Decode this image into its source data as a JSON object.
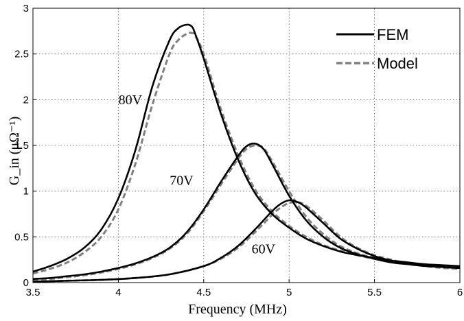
{
  "chart_data": {
    "type": "line",
    "xlabel": "Frequency (MHz)",
    "ylabel": "G_in (μΩ⁻¹)",
    "xlim": [
      3.5,
      6
    ],
    "ylim": [
      0,
      3
    ],
    "xticks": [
      "3.5",
      "4",
      "4.5",
      "5",
      "5.5",
      "6"
    ],
    "yticks": [
      "0",
      "0.5",
      "1",
      "1.5",
      "2",
      "2.5",
      "3"
    ],
    "grid": true,
    "legend_position": "top-right",
    "legend": [
      {
        "name": "FEM",
        "style": "solid",
        "color": "#000000"
      },
      {
        "name": "Model",
        "style": "dashed",
        "color": "#808080"
      }
    ],
    "series": [
      {
        "name": "FEM",
        "curve": "80V",
        "x": [
          3.5,
          3.6,
          3.7,
          3.8,
          3.9,
          4.0,
          4.1,
          4.2,
          4.3,
          4.35,
          4.4,
          4.43,
          4.45,
          4.5,
          4.6,
          4.7,
          4.8,
          4.9,
          5.0,
          5.1,
          5.2,
          5.3,
          5.4,
          5.5,
          5.6,
          5.7,
          5.8,
          5.9,
          6.0
        ],
        "y": [
          0.12,
          0.18,
          0.26,
          0.38,
          0.58,
          0.92,
          1.45,
          2.15,
          2.65,
          2.78,
          2.82,
          2.8,
          2.72,
          2.45,
          1.85,
          1.35,
          0.98,
          0.75,
          0.6,
          0.48,
          0.4,
          0.34,
          0.3,
          0.27,
          0.24,
          0.22,
          0.2,
          0.19,
          0.18
        ]
      },
      {
        "name": "Model",
        "curve": "80V",
        "x": [
          3.5,
          3.6,
          3.7,
          3.8,
          3.9,
          4.0,
          4.1,
          4.2,
          4.3,
          4.35,
          4.4,
          4.43,
          4.45,
          4.5,
          4.6,
          4.7,
          4.8,
          4.9,
          5.0,
          5.1,
          5.2,
          5.3,
          5.4,
          5.5,
          5.6,
          5.7,
          5.8,
          5.9,
          6.0
        ],
        "y": [
          0.1,
          0.15,
          0.22,
          0.33,
          0.5,
          0.8,
          1.3,
          1.95,
          2.5,
          2.65,
          2.72,
          2.73,
          2.7,
          2.5,
          1.9,
          1.4,
          1.02,
          0.78,
          0.62,
          0.5,
          0.41,
          0.35,
          0.3,
          0.26,
          0.23,
          0.21,
          0.19,
          0.17,
          0.16
        ]
      },
      {
        "name": "FEM",
        "curve": "70V",
        "x": [
          3.5,
          3.6,
          3.7,
          3.8,
          3.9,
          4.0,
          4.1,
          4.2,
          4.3,
          4.4,
          4.5,
          4.6,
          4.7,
          4.75,
          4.8,
          4.85,
          4.9,
          5.0,
          5.1,
          5.2,
          5.3,
          5.4,
          5.5,
          5.6,
          5.7,
          5.8,
          5.9,
          6.0
        ],
        "y": [
          0.04,
          0.05,
          0.07,
          0.09,
          0.12,
          0.16,
          0.21,
          0.28,
          0.38,
          0.55,
          0.8,
          1.1,
          1.38,
          1.49,
          1.52,
          1.46,
          1.3,
          0.95,
          0.68,
          0.5,
          0.38,
          0.31,
          0.26,
          0.22,
          0.2,
          0.18,
          0.17,
          0.16
        ]
      },
      {
        "name": "Model",
        "curve": "70V",
        "x": [
          3.5,
          3.6,
          3.7,
          3.8,
          3.9,
          4.0,
          4.1,
          4.2,
          4.3,
          4.4,
          4.5,
          4.6,
          4.7,
          4.75,
          4.8,
          4.85,
          4.9,
          5.0,
          5.1,
          5.2,
          5.3,
          5.4,
          5.5,
          5.6,
          5.7,
          5.8,
          5.9,
          6.0
        ],
        "y": [
          0.03,
          0.04,
          0.06,
          0.08,
          0.11,
          0.15,
          0.2,
          0.27,
          0.37,
          0.53,
          0.78,
          1.07,
          1.35,
          1.46,
          1.5,
          1.47,
          1.33,
          1.0,
          0.72,
          0.53,
          0.4,
          0.32,
          0.27,
          0.23,
          0.2,
          0.18,
          0.16,
          0.15
        ]
      },
      {
        "name": "FEM",
        "curve": "60V",
        "x": [
          3.5,
          3.7,
          3.9,
          4.1,
          4.3,
          4.5,
          4.6,
          4.7,
          4.8,
          4.9,
          4.95,
          5.0,
          5.05,
          5.1,
          5.2,
          5.3,
          5.4,
          5.5,
          5.6,
          5.7,
          5.8,
          5.9,
          6.0
        ],
        "y": [
          0.01,
          0.02,
          0.03,
          0.05,
          0.09,
          0.18,
          0.27,
          0.4,
          0.58,
          0.78,
          0.86,
          0.9,
          0.88,
          0.82,
          0.65,
          0.48,
          0.37,
          0.29,
          0.24,
          0.21,
          0.19,
          0.17,
          0.16
        ]
      },
      {
        "name": "Model",
        "curve": "60V",
        "x": [
          3.5,
          3.7,
          3.9,
          4.1,
          4.3,
          4.5,
          4.6,
          4.7,
          4.8,
          4.9,
          4.95,
          5.0,
          5.05,
          5.1,
          5.2,
          5.3,
          5.4,
          5.5,
          5.6,
          5.7,
          5.8,
          5.9,
          6.0
        ],
        "y": [
          0.01,
          0.02,
          0.03,
          0.05,
          0.09,
          0.18,
          0.26,
          0.38,
          0.55,
          0.74,
          0.82,
          0.87,
          0.88,
          0.84,
          0.68,
          0.5,
          0.38,
          0.3,
          0.25,
          0.21,
          0.19,
          0.17,
          0.15
        ]
      }
    ],
    "annotations": [
      {
        "text": "80V",
        "x": 4.07,
        "y": 1.95
      },
      {
        "text": "70V",
        "x": 4.37,
        "y": 1.07
      },
      {
        "text": "60V",
        "x": 4.85,
        "y": 0.32
      }
    ]
  }
}
